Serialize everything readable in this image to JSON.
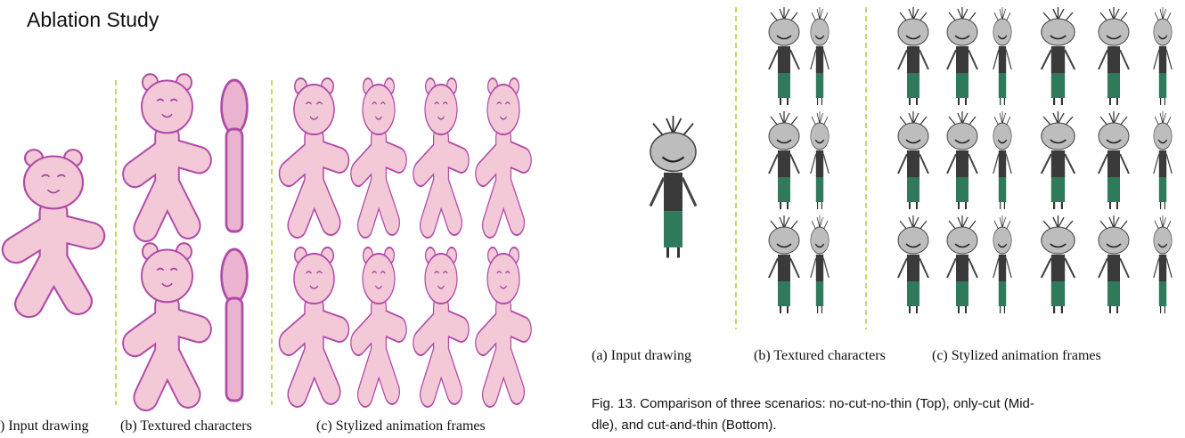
{
  "header": {
    "title": "Ablation Study"
  },
  "left_figure": {
    "captions": [
      ") Input drawing",
      "(b) Textured characters",
      "(c) Stylized animation frames"
    ]
  },
  "right_figure": {
    "captions": [
      "(a) Input drawing",
      "(b) Textured characters",
      "(c) Stylized animation frames"
    ],
    "caption_lines": [
      "Fig. 13.  Comparison of three scenarios: no-cut-no-thin (Top), only-cut (Mid-",
      "dle), and cut-and-thin (Bottom)."
    ]
  }
}
